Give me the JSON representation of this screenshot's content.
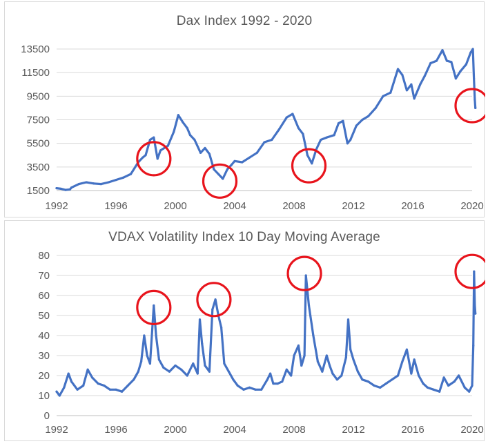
{
  "chart_data": [
    {
      "type": "line",
      "title": "Dax Index 1992 - 2020",
      "xlabel": "",
      "ylabel": "",
      "xlim": [
        1992,
        2020
      ],
      "ylim": [
        1500,
        13500
      ],
      "x_ticks": [
        "1992",
        "1996",
        "2000",
        "2004",
        "2008",
        "2012",
        "2016",
        "2020"
      ],
      "y_ticks": [
        "1500",
        "3500",
        "5500",
        "7500",
        "9500",
        "11500",
        "13500"
      ],
      "grid": "horizontal",
      "series": [
        {
          "color": "#4472C4",
          "x": [
            1992.0,
            1992.3,
            1992.6,
            1992.9,
            1993.0,
            1993.5,
            1994.0,
            1994.5,
            1995.0,
            1995.5,
            1996.0,
            1996.5,
            1997.0,
            1997.5,
            1997.8,
            1998.0,
            1998.3,
            1998.55,
            1998.8,
            1999.0,
            1999.5,
            1999.9,
            2000.2,
            2000.5,
            2000.8,
            2001.0,
            2001.3,
            2001.7,
            2002.0,
            2002.3,
            2002.6,
            2002.9,
            2003.2,
            2003.5,
            2003.8,
            2004.0,
            2004.5,
            2005.0,
            2005.5,
            2006.0,
            2006.5,
            2007.0,
            2007.5,
            2007.9,
            2008.3,
            2008.6,
            2008.9,
            2009.2,
            2009.5,
            2009.8,
            2010.2,
            2010.7,
            2011.0,
            2011.3,
            2011.6,
            2011.8,
            2012.2,
            2012.6,
            2013.0,
            2013.5,
            2014.0,
            2014.5,
            2015.0,
            2015.3,
            2015.6,
            2015.9,
            2016.1,
            2016.5,
            2016.8,
            2017.2,
            2017.6,
            2018.0,
            2018.3,
            2018.6,
            2018.9,
            2019.2,
            2019.6,
            2019.9,
            2020.05,
            2020.12,
            2020.18,
            2020.22
          ],
          "y": [
            1700,
            1650,
            1550,
            1600,
            1750,
            2050,
            2200,
            2100,
            2050,
            2200,
            2400,
            2600,
            2900,
            3900,
            4300,
            4500,
            5800,
            6000,
            4200,
            4900,
            5300,
            6500,
            7900,
            7300,
            6800,
            6200,
            5800,
            4700,
            5100,
            4600,
            3300,
            2900,
            2500,
            3300,
            3700,
            4000,
            3900,
            4300,
            4700,
            5600,
            5800,
            6700,
            7700,
            8000,
            6800,
            6300,
            4500,
            3800,
            5000,
            5800,
            6000,
            6200,
            7200,
            7400,
            5500,
            5800,
            7000,
            7500,
            7800,
            8500,
            9500,
            9800,
            11800,
            11300,
            10000,
            10500,
            9300,
            10500,
            11200,
            12300,
            12500,
            13400,
            12500,
            12400,
            11000,
            11600,
            12200,
            13200,
            13500,
            11000,
            9200,
            8500
          ]
        }
      ],
      "annotations": [
        {
          "type": "circle",
          "x": 1998.55,
          "y": 4200
        },
        {
          "type": "circle",
          "x": 2003.0,
          "y": 2300
        },
        {
          "type": "circle",
          "x": 2009.0,
          "y": 3600
        },
        {
          "type": "circle",
          "x": 2020.0,
          "y": 8700
        }
      ]
    },
    {
      "type": "line",
      "title": "VDAX Volatility Index 10 Day Moving Average",
      "xlabel": "",
      "ylabel": "",
      "xlim": [
        1992,
        2020
      ],
      "ylim": [
        0,
        80
      ],
      "x_ticks": [
        "1992",
        "1996",
        "2000",
        "2004",
        "2008",
        "2012",
        "2016",
        "2020"
      ],
      "y_ticks": [
        "0",
        "10",
        "20",
        "30",
        "40",
        "50",
        "60",
        "70",
        "80"
      ],
      "grid": "horizontal",
      "series": [
        {
          "color": "#4472C4",
          "x": [
            1992.0,
            1992.2,
            1992.5,
            1992.8,
            1993.0,
            1993.4,
            1993.8,
            1994.1,
            1994.4,
            1994.8,
            1995.2,
            1995.6,
            1996.0,
            1996.4,
            1996.8,
            1997.2,
            1997.5,
            1997.7,
            1997.9,
            1998.1,
            1998.3,
            1998.55,
            1998.7,
            1998.9,
            1999.2,
            1999.6,
            2000.0,
            2000.4,
            2000.8,
            2001.2,
            2001.5,
            2001.65,
            2001.8,
            2002.0,
            2002.3,
            2002.5,
            2002.7,
            2002.9,
            2003.1,
            2003.3,
            2003.6,
            2003.9,
            2004.2,
            2004.6,
            2005.0,
            2005.4,
            2005.8,
            2006.2,
            2006.4,
            2006.6,
            2006.9,
            2007.2,
            2007.5,
            2007.8,
            2008.0,
            2008.3,
            2008.5,
            2008.7,
            2008.8,
            2009.0,
            2009.3,
            2009.6,
            2009.9,
            2010.2,
            2010.4,
            2010.6,
            2010.9,
            2011.2,
            2011.5,
            2011.65,
            2011.8,
            2012.0,
            2012.3,
            2012.6,
            2013.0,
            2013.4,
            2013.8,
            2014.2,
            2014.6,
            2015.0,
            2015.3,
            2015.6,
            2015.9,
            2016.1,
            2016.4,
            2016.7,
            2017.0,
            2017.4,
            2017.8,
            2018.1,
            2018.4,
            2018.8,
            2019.1,
            2019.5,
            2019.8,
            2020.0,
            2020.08,
            2020.13,
            2020.18,
            2020.22
          ],
          "y": [
            12,
            10,
            14,
            21,
            17,
            13,
            15,
            23,
            19,
            16,
            15,
            13,
            13,
            12,
            15,
            18,
            22,
            27,
            40,
            30,
            26,
            55,
            40,
            28,
            24,
            22,
            25,
            23,
            20,
            26,
            21,
            48,
            36,
            25,
            22,
            53,
            58,
            50,
            44,
            26,
            22,
            18,
            15,
            13,
            14,
            13,
            13,
            18,
            21,
            16,
            16,
            17,
            23,
            20,
            30,
            35,
            25,
            30,
            70,
            55,
            40,
            27,
            22,
            30,
            25,
            21,
            18,
            20,
            29,
            48,
            33,
            28,
            22,
            18,
            17,
            15,
            14,
            16,
            18,
            20,
            27,
            33,
            21,
            28,
            20,
            16,
            14,
            13,
            12,
            19,
            15,
            17,
            20,
            14,
            12,
            15,
            35,
            72,
            55,
            51
          ]
        }
      ],
      "annotations": [
        {
          "type": "circle",
          "x": 1998.55,
          "y": 54
        },
        {
          "type": "circle",
          "x": 2002.6,
          "y": 58
        },
        {
          "type": "circle",
          "x": 2008.7,
          "y": 71
        },
        {
          "type": "circle",
          "x": 2020.0,
          "y": 72
        }
      ]
    }
  ]
}
